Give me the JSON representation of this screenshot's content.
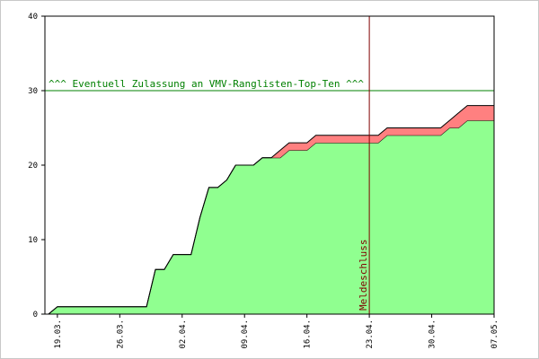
{
  "chart_data": {
    "type": "stacked-area",
    "x": [
      -1,
      0,
      1,
      2,
      3,
      4,
      5,
      6,
      7,
      8,
      9,
      10,
      11,
      12,
      13,
      14,
      15,
      16,
      17,
      18,
      19,
      20,
      21,
      22,
      23,
      24,
      25,
      26,
      27,
      28,
      29,
      30,
      31,
      32,
      33,
      34,
      35,
      36,
      37,
      38,
      39,
      40,
      41,
      42,
      43,
      44,
      45,
      46,
      47,
      48,
      49
    ],
    "series": [
      {
        "color": "#90ff90",
        "values": [
          0,
          1,
          1,
          1,
          1,
          1,
          1,
          1,
          1,
          1,
          1,
          1,
          6,
          6,
          8,
          8,
          8,
          13,
          17,
          17,
          18,
          20,
          20,
          20,
          21,
          21,
          21,
          22,
          22,
          22,
          23,
          23,
          23,
          23,
          23,
          23,
          23,
          23,
          24,
          24,
          24,
          24,
          24,
          24,
          24,
          25,
          25,
          26,
          26,
          26,
          26
        ]
      },
      {
        "color": "#ff8080",
        "values": [
          0,
          0,
          0,
          0,
          0,
          0,
          0,
          0,
          0,
          0,
          0,
          0,
          0,
          0,
          0,
          0,
          0,
          0,
          0,
          0,
          0,
          0,
          0,
          0,
          0,
          0,
          1,
          1,
          1,
          1,
          1,
          1,
          1,
          1,
          1,
          1,
          1,
          1,
          1,
          1,
          1,
          1,
          1,
          1,
          1,
          1,
          2,
          2,
          2,
          2,
          2
        ]
      }
    ],
    "xlim": [
      -1.4,
      49
    ],
    "xticks": [
      {
        "value": 0,
        "label": "19.03."
      },
      {
        "value": 7,
        "label": "26.03."
      },
      {
        "value": 14,
        "label": "02.04."
      },
      {
        "value": 21,
        "label": "09.04."
      },
      {
        "value": 28,
        "label": "16.04."
      },
      {
        "value": 35,
        "label": "23.04."
      },
      {
        "value": 42,
        "label": "30.04."
      },
      {
        "value": 49,
        "label": "07.05."
      }
    ],
    "ylim": [
      0,
      40
    ],
    "yticks": [
      0,
      10,
      20,
      30,
      40
    ],
    "hline": {
      "value": 30,
      "label": "^^^ Eventuell Zulassung an VMV-Ranglisten-Top-Ten ^^^",
      "color": "#008000"
    },
    "vline": {
      "value": 35,
      "label": "Meldeschluss",
      "color": "#800000"
    }
  }
}
